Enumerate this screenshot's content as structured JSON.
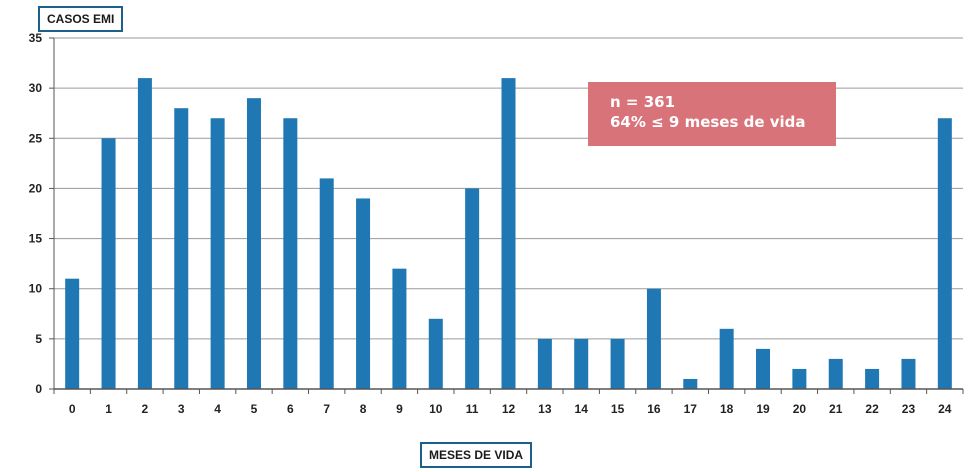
{
  "colors": {
    "bar": "#1f77b4",
    "grid": "#9a9a9a",
    "axis": "#555555",
    "annotation_bg": "#d9737a",
    "label_border": "#1f5f8b"
  },
  "annotation": {
    "line1": "n = 361",
    "line2": "64% ≤ 9 meses de vida"
  },
  "chart_data": {
    "type": "bar",
    "title": "",
    "xlabel": "MESES DE VIDA",
    "ylabel": "CASOS EMI",
    "categories": [
      "0",
      "1",
      "2",
      "3",
      "4",
      "5",
      "6",
      "7",
      "8",
      "9",
      "10",
      "11",
      "12",
      "13",
      "14",
      "15",
      "16",
      "17",
      "18",
      "19",
      "20",
      "21",
      "22",
      "23",
      "24"
    ],
    "values": [
      11,
      25,
      31,
      28,
      27,
      29,
      27,
      21,
      19,
      12,
      7,
      20,
      31,
      5,
      5,
      5,
      10,
      1,
      6,
      4,
      2,
      3,
      2,
      3,
      27
    ],
    "ylim": [
      0,
      35
    ],
    "yticks": [
      "0",
      "5",
      "10",
      "15",
      "20",
      "25",
      "30",
      "35"
    ],
    "grid": true,
    "legend": "none"
  }
}
